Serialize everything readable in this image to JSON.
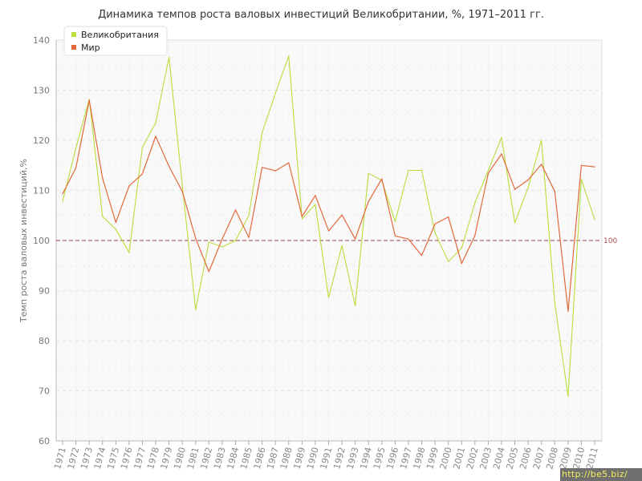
{
  "chart_data": {
    "type": "line",
    "title": "Динамика темпов роста валовых инвестиций Великобритании, %, 1971–2011 гг.",
    "xlabel": "",
    "ylabel": "Темп роста валовых инвестиций,%",
    "ylim": [
      60,
      140
    ],
    "yticks": [
      60,
      70,
      80,
      90,
      100,
      110,
      120,
      130,
      140
    ],
    "grid": true,
    "legend_position": "top-left",
    "categories": [
      "1971",
      "1972",
      "1973",
      "1974",
      "1975",
      "1976",
      "1977",
      "1978",
      "1979",
      "1980",
      "1981",
      "1982",
      "1983",
      "1984",
      "1985",
      "1986",
      "1987",
      "1988",
      "1989",
      "1990",
      "1991",
      "1992",
      "1993",
      "1994",
      "1995",
      "1996",
      "1997",
      "1998",
      "1999",
      "2000",
      "2001",
      "2002",
      "2003",
      "2004",
      "2005",
      "2006",
      "2007",
      "2008",
      "2009",
      "2010",
      "2011"
    ],
    "series": [
      {
        "name": "Великобритания",
        "color": "#b9dd3a",
        "values": [
          107.8,
          118.5,
          128.2,
          104.8,
          102.2,
          97.6,
          118.6,
          123.5,
          136.6,
          111.0,
          86.2,
          99.7,
          98.7,
          100.0,
          105.0,
          121.5,
          129.4,
          136.8,
          104.3,
          107.2,
          88.6,
          99.0,
          87.0,
          113.4,
          112.0,
          103.8,
          114.0,
          114.0,
          101.5,
          95.8,
          98.5,
          107.5,
          114.0,
          120.6,
          103.5,
          110.6,
          120.0,
          87.5,
          68.9,
          112.2,
          104.2
        ]
      },
      {
        "name": "Мир",
        "color": "#e2693c",
        "values": [
          109.3,
          114.5,
          128.0,
          112.5,
          103.6,
          110.9,
          113.3,
          120.8,
          114.8,
          109.8,
          100.4,
          93.8,
          100.3,
          106.1,
          100.6,
          114.6,
          113.9,
          115.5,
          104.8,
          109.0,
          101.9,
          105.1,
          100.3,
          107.8,
          112.3,
          100.9,
          100.3,
          97.0,
          103.3,
          104.7,
          95.4,
          101.0,
          113.4,
          117.3,
          110.2,
          112.1,
          115.2,
          109.8,
          85.9,
          115.0,
          114.7
        ]
      }
    ],
    "reference_line": {
      "value": 100,
      "label": "100",
      "color": "#a03c4c"
    }
  },
  "watermark": "http://be5.biz/"
}
